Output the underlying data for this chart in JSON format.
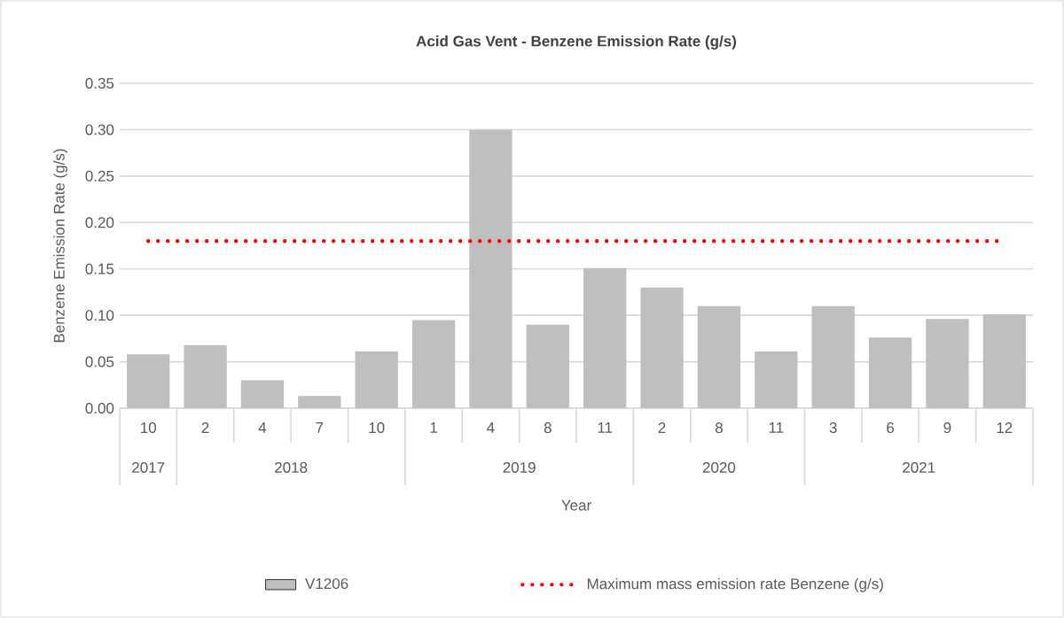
{
  "chart_data": {
    "type": "bar",
    "title": "Acid Gas Vent - Benzene Emission Rate (g/s)",
    "xlabel": "Year",
    "ylabel": "Benzene Emission Rate (g/s)",
    "categories": [
      "10",
      "2",
      "4",
      "7",
      "10",
      "1",
      "4",
      "8",
      "11",
      "2",
      "8",
      "11",
      "3",
      "6",
      "9",
      "12"
    ],
    "series": [
      {
        "name": "V1206",
        "color": "#bfbfbf",
        "values": [
          0.058,
          0.068,
          0.03,
          0.013,
          0.061,
          0.095,
          0.3,
          0.09,
          0.151,
          0.13,
          0.11,
          0.061,
          0.11,
          0.076,
          0.096,
          0.101
        ]
      }
    ],
    "ref_lines": [
      {
        "axis": "y",
        "value": 0.18,
        "label": "Maximum mass emission rate Benzene (g/s)",
        "color": "#ff0000",
        "line_style": "dotted"
      }
    ],
    "annotations": [
      "2017",
      "2018",
      "2019",
      "2020",
      "2021"
    ],
    "ylim": [
      0,
      0.35
    ],
    "yticks": [
      {
        "value": 0,
        "label": "0.00"
      },
      {
        "value": 0.05,
        "label": "0.05"
      },
      {
        "value": 0.1,
        "label": "0.10"
      },
      {
        "value": 0.15,
        "label": "0.15"
      },
      {
        "value": 0.2,
        "label": "0.20"
      },
      {
        "value": 0.25,
        "label": "0.25"
      },
      {
        "value": 0.3,
        "label": "0.30"
      },
      {
        "value": 0.35,
        "label": "0.35"
      }
    ],
    "grid": "y",
    "legend": "bottom"
  }
}
